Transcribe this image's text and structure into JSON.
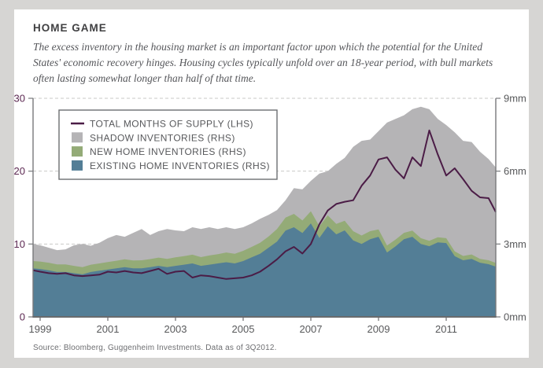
{
  "title": "HOME GAME",
  "subtitle": "The excess inventory in the housing market is an important factor upon which the potential for the United States' economic recovery hinges. Housing cycles typically unfold over an 18-year period, with bull markets often lasting somewhat longer than half of that time.",
  "source": "Source: Bloomberg, Guggenheim Investments. Data as of 3Q2012.",
  "colors": {
    "page_background": "#d6d5d3",
    "card_background": "#ffffff",
    "line_purple": "#4b1c46",
    "area_gray": "#b5b4b6",
    "area_green": "#94ab77",
    "area_blue": "#537e96",
    "axis": "#77787b",
    "grid": "#c9c9c7",
    "left_tick_label": "#5c2852",
    "right_tick_label": "#58595b",
    "legend_border": "#6d6e71",
    "legend_text": "#57585b"
  },
  "chart_data": {
    "type": "area",
    "subtype": "stacked-areas-with-line-overlay",
    "grid": "dashed-horizontal",
    "legend_position": "top-left",
    "x": [
      1998.75,
      1999.0,
      1999.25,
      1999.5,
      1999.75,
      2000.0,
      2000.25,
      2000.5,
      2000.75,
      2001.0,
      2001.25,
      2001.5,
      2001.75,
      2002.0,
      2002.25,
      2002.5,
      2002.75,
      2003.0,
      2003.25,
      2003.5,
      2003.75,
      2004.0,
      2004.25,
      2004.5,
      2004.75,
      2005.0,
      2005.25,
      2005.5,
      2005.75,
      2006.0,
      2006.25,
      2006.5,
      2006.75,
      2007.0,
      2007.25,
      2007.5,
      2007.75,
      2008.0,
      2008.25,
      2008.5,
      2008.75,
      2009.0,
      2009.25,
      2009.5,
      2009.75,
      2010.0,
      2010.25,
      2010.5,
      2010.75,
      2011.0,
      2011.25,
      2011.5,
      2011.75,
      2012.0,
      2012.25,
      2012.5
    ],
    "series": [
      {
        "name": "TOTAL MONTHS OF SUPPLY (LHS)",
        "kind": "line",
        "axis": "left",
        "color": "#4b1c46",
        "values": [
          6.4,
          6.2,
          6.0,
          5.9,
          6.0,
          5.7,
          5.6,
          5.7,
          5.8,
          6.2,
          6.1,
          6.3,
          6.1,
          6.0,
          6.3,
          6.6,
          5.9,
          6.2,
          6.3,
          5.4,
          5.7,
          5.6,
          5.4,
          5.2,
          5.3,
          5.4,
          5.7,
          6.2,
          7.0,
          7.9,
          9.0,
          9.6,
          8.7,
          10.0,
          12.7,
          14.6,
          15.5,
          15.8,
          16.0,
          18.0,
          19.4,
          21.6,
          21.9,
          20.2,
          19.0,
          21.9,
          20.7,
          25.6,
          22.3,
          19.4,
          20.4,
          18.9,
          17.3,
          16.4,
          16.3,
          14.4
        ]
      },
      {
        "name": "SHADOW INVENTORIES (RHS)",
        "kind": "area",
        "axis": "right",
        "stack_index": 2,
        "color": "#b5b4b6",
        "values": [
          0.7,
          0.67,
          0.62,
          0.59,
          0.62,
          0.85,
          0.95,
          0.78,
          0.85,
          0.98,
          1.06,
          0.93,
          1.14,
          1.29,
          0.99,
          1.09,
          1.23,
          1.11,
          1.03,
          1.13,
          1.16,
          1.16,
          1.04,
          1.04,
          1.02,
          0.97,
          0.97,
          0.99,
          0.89,
          0.78,
          0.71,
          1.06,
          1.28,
          1.25,
          2.17,
          1.82,
          2.47,
          2.59,
          3.47,
          3.9,
          3.77,
          4.05,
          5.06,
          4.97,
          4.84,
          5.0,
          5.41,
          5.42,
          4.87,
          4.66,
          4.9,
          4.74,
          4.63,
          4.41,
          4.17,
          3.93
        ]
      },
      {
        "name": "NEW HOME INVENTORIES (RHS)",
        "kind": "area",
        "axis": "right",
        "stack_index": 1,
        "color": "#94ab77",
        "values": [
          0.3,
          0.31,
          0.31,
          0.31,
          0.31,
          0.3,
          0.3,
          0.3,
          0.3,
          0.31,
          0.31,
          0.32,
          0.32,
          0.33,
          0.33,
          0.34,
          0.34,
          0.35,
          0.35,
          0.36,
          0.36,
          0.38,
          0.38,
          0.4,
          0.4,
          0.42,
          0.43,
          0.45,
          0.46,
          0.52,
          0.54,
          0.55,
          0.52,
          0.5,
          0.48,
          0.45,
          0.43,
          0.4,
          0.38,
          0.35,
          0.33,
          0.3,
          0.29,
          0.28,
          0.26,
          0.25,
          0.24,
          0.22,
          0.21,
          0.2,
          0.2,
          0.18,
          0.18,
          0.16,
          0.16,
          0.15
        ]
      },
      {
        "name": "EXISTING HOME INVENTORIES (RHS)",
        "kind": "area",
        "axis": "right",
        "stack_index": 0,
        "color": "#537e96",
        "values": [
          2.0,
          1.97,
          1.92,
          1.85,
          1.85,
          1.8,
          1.75,
          1.85,
          1.9,
          1.95,
          2.0,
          2.05,
          2.0,
          2.0,
          2.05,
          2.1,
          2.05,
          2.1,
          2.15,
          2.2,
          2.1,
          2.15,
          2.2,
          2.25,
          2.2,
          2.3,
          2.45,
          2.6,
          2.85,
          3.1,
          3.55,
          3.69,
          3.45,
          3.85,
          3.25,
          3.73,
          3.4,
          3.56,
          3.15,
          3.0,
          3.2,
          3.3,
          2.65,
          2.9,
          3.2,
          3.3,
          3.0,
          2.91,
          3.07,
          3.04,
          2.5,
          2.33,
          2.39,
          2.23,
          2.17,
          2.07
        ]
      }
    ],
    "left_axis": {
      "range": [
        0,
        30
      ],
      "tick_values": [
        0,
        10,
        20,
        30
      ],
      "tick_labels": [
        "0",
        "10",
        "20",
        "30"
      ]
    },
    "right_axis": {
      "range": [
        0,
        9
      ],
      "tick_values": [
        0,
        3,
        6,
        9
      ],
      "tick_labels": [
        "0mm",
        "3mm",
        "6mm",
        "9mm"
      ]
    },
    "x_axis": {
      "range": [
        1998.75,
        2012.6
      ],
      "tick_values": [
        1999,
        2001,
        2003,
        2005,
        2007,
        2009,
        2011
      ],
      "tick_labels": [
        "1999",
        "2001",
        "2003",
        "2005",
        "2007",
        "2009",
        "2011"
      ]
    }
  }
}
